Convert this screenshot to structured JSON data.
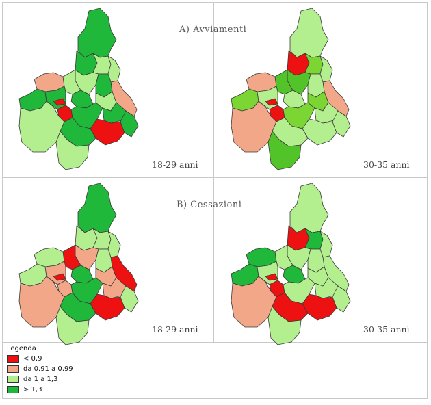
{
  "sections": [
    {
      "id": "A",
      "title": "A)  Avviamenti"
    },
    {
      "id": "B",
      "title": "B)  Cessazioni"
    }
  ],
  "panels": [
    {
      "id": "A1",
      "section": "A",
      "age_group": "18-29 anni",
      "areas": {
        "ne": "g",
        "n1": "g",
        "n2": "l",
        "n3": "l",
        "e1": "l",
        "e2": "o",
        "e3": "g",
        "e4": "l",
        "w1": "o",
        "w2": "l",
        "w3": "g",
        "w4": "g",
        "c1": "r",
        "c2": "r",
        "c3": "g",
        "c4": "g",
        "c5": "g",
        "se1": "r",
        "se2": "g",
        "s1": "l",
        "s2": "g",
        "s3": "l"
      }
    },
    {
      "id": "A2",
      "section": "A",
      "age_group": "30-35 anni",
      "areas": {
        "ne": "l",
        "n1": "r",
        "n2": "lg",
        "n3": "mg",
        "e1": "l",
        "e2": "o",
        "e3": "l",
        "e4": "lg",
        "w1": "o",
        "w2": "mg",
        "w3": "lg",
        "w4": "l",
        "c1": "r",
        "c2": "r",
        "c3": "l",
        "c4": "lg",
        "c5": "l",
        "se1": "l",
        "se2": "l",
        "s1": "o",
        "s2": "l",
        "s3": "mg"
      }
    },
    {
      "id": "B1",
      "section": "B",
      "age_group": "18-29 anni",
      "areas": {
        "ne": "g",
        "n1": "l",
        "n2": "l",
        "n3": "o",
        "e1": "l",
        "e2": "r",
        "e3": "l",
        "e4": "o",
        "w1": "l",
        "w2": "r",
        "w3": "l",
        "w4": "o",
        "c1": "r",
        "c2": "o",
        "c3": "g",
        "c4": "g",
        "c5": "o",
        "se1": "r",
        "se2": "l",
        "s1": "o",
        "s2": "g",
        "s3": "l"
      }
    },
    {
      "id": "B2",
      "section": "B",
      "age_group": "30-35 anni",
      "areas": {
        "ne": "l",
        "n1": "r",
        "n2": "g",
        "n3": "l",
        "e1": "l",
        "e2": "l",
        "e3": "l",
        "e4": "l",
        "w1": "g",
        "w2": "l",
        "w3": "g",
        "w4": "l",
        "c1": "r",
        "c2": "r",
        "c3": "g",
        "c4": "l",
        "c5": "l",
        "se1": "r",
        "se2": "l",
        "s1": "o",
        "s2": "r",
        "s3": "l"
      }
    }
  ],
  "palette": {
    "r": "#ee1111",
    "o": "#f2a888",
    "l": "#b4ef8f",
    "g": "#1fb83a",
    "lg": "#7bd634",
    "mg": "#52c42a",
    "border": "#c9c9c9"
  },
  "legend": {
    "title": "Legenda",
    "items": [
      {
        "label": "< 0,9",
        "color": "#ee1111"
      },
      {
        "label": "da 0.91 a 0,99",
        "color": "#f2a888"
      },
      {
        "label": "da 1 a 1,3",
        "color": "#b4ef8f"
      },
      {
        "label": "> 1,3",
        "color": "#1fb83a"
      }
    ]
  }
}
